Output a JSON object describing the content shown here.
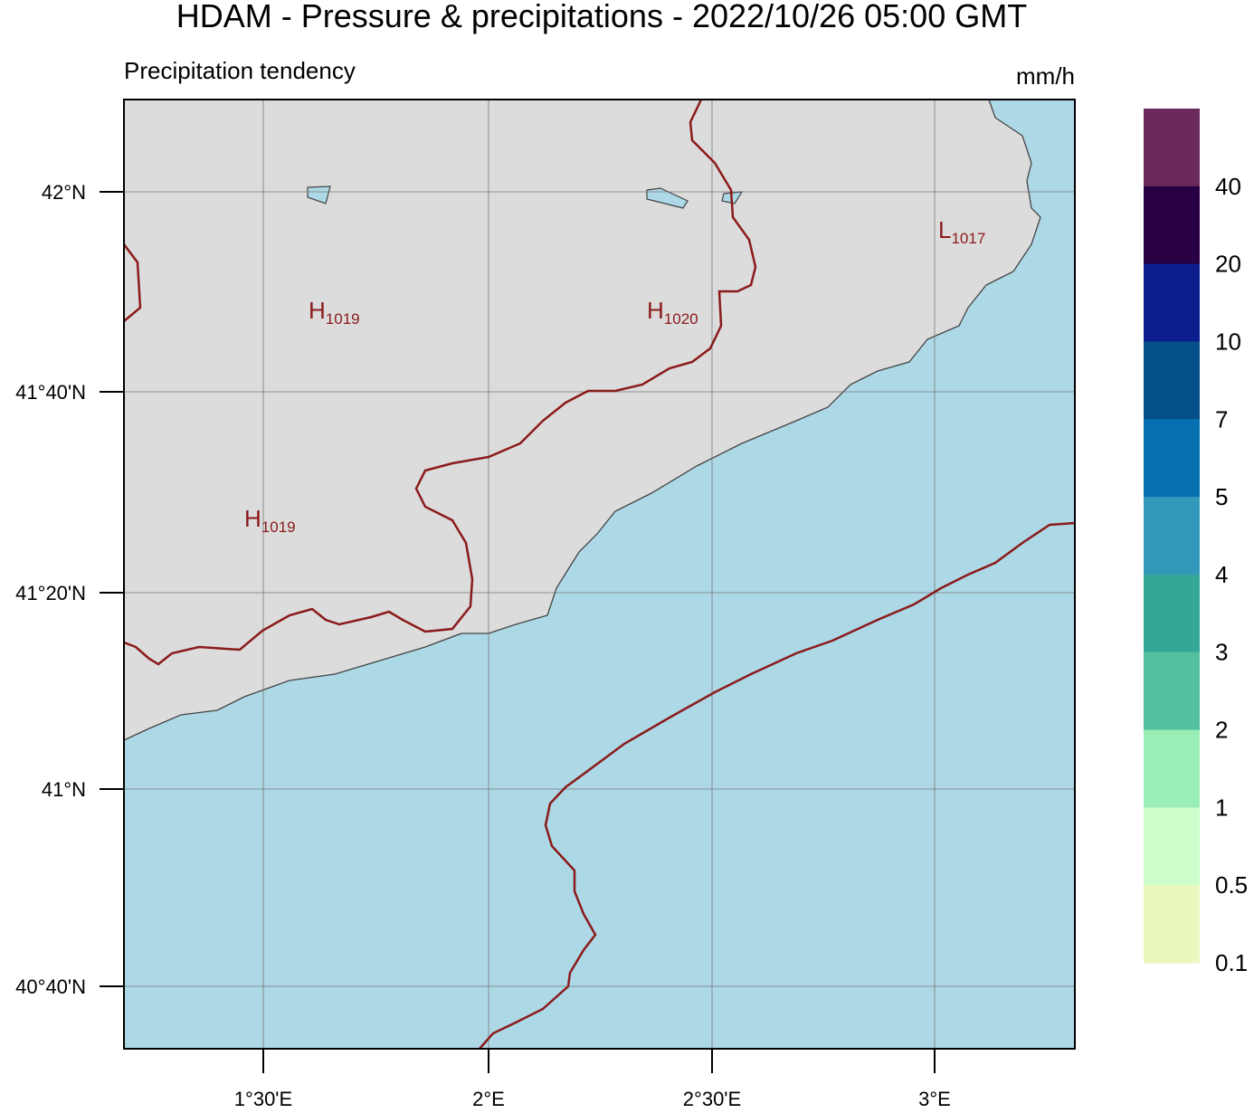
{
  "header": {
    "title": "HDAM - Pressure & precipitations  -  2022/10/26  05:00 GMT",
    "subtitle": "Precipitation tendency",
    "unit": "mm/h"
  },
  "map": {
    "lat_labels": [
      "42°N",
      "41°40'N",
      "41°20'N",
      "41°N",
      "40°40'N"
    ],
    "lon_labels": [
      "1°30'E",
      "2°E",
      "2°30'E",
      "3°E"
    ],
    "pressure_centers": [
      {
        "letter": "H",
        "value": "1019"
      },
      {
        "letter": "H",
        "value": "1020"
      },
      {
        "letter": "L",
        "value": "1017"
      },
      {
        "letter": "H",
        "value": "1019"
      }
    ]
  },
  "colorbar": {
    "colors": [
      "#6b2a5b",
      "#2a0044",
      "#0c1d8e",
      "#06508a",
      "#0470b0",
      "#3399bb",
      "#33a898",
      "#55c0a0",
      "#99eeb5",
      "#ccffcc",
      "#eaf8c0"
    ],
    "labels": [
      "40",
      "20",
      "10",
      "7",
      "5",
      "4",
      "3",
      "2",
      "1",
      "0.5",
      "0.1"
    ]
  }
}
